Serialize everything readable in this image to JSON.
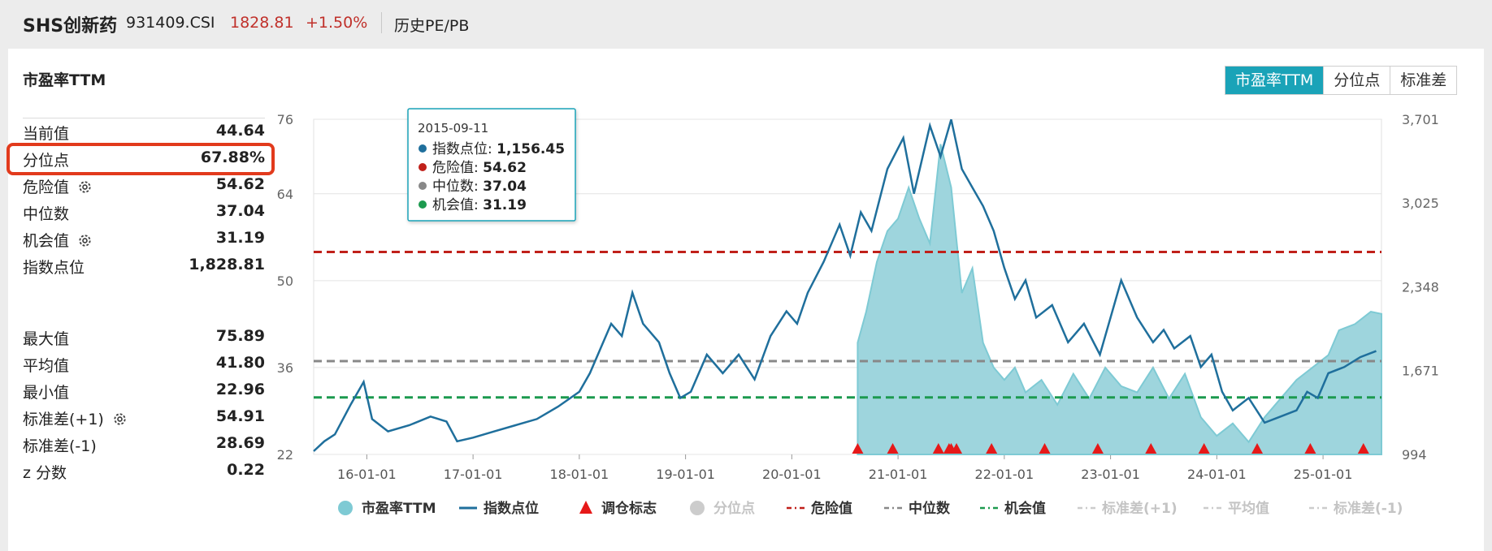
{
  "header": {
    "name": "SHS创新药",
    "code": "931409.CSI",
    "price": "1828.81",
    "change": "+1.50%",
    "history_label": "历史PE/PB"
  },
  "panel": {
    "title": "市盈率TTM",
    "stats": [
      {
        "label": "当前值",
        "value": "44.64",
        "gear": false
      },
      {
        "label": "分位点",
        "value": "67.88%",
        "gear": false
      },
      {
        "label": "危险值",
        "value": "54.62",
        "gear": true
      },
      {
        "label": "中位数",
        "value": "37.04",
        "gear": false
      },
      {
        "label": "机会值",
        "value": "31.19",
        "gear": true
      },
      {
        "label": "指数点位",
        "value": "1,828.81",
        "gear": false
      }
    ],
    "stats2": [
      {
        "label": "最大值",
        "value": "75.89",
        "gear": false
      },
      {
        "label": "平均值",
        "value": "41.80",
        "gear": false
      },
      {
        "label": "最小值",
        "value": "22.96",
        "gear": false
      },
      {
        "label": "标准差(+1)",
        "value": "54.91",
        "gear": true
      },
      {
        "label": "标准差(-1)",
        "value": "28.69",
        "gear": false
      },
      {
        "label": "z 分数",
        "value": "0.22",
        "gear": false
      }
    ]
  },
  "tabs": [
    {
      "label": "市盈率TTM",
      "active": true
    },
    {
      "label": "分位点",
      "active": false
    },
    {
      "label": "标准差",
      "active": false
    }
  ],
  "tooltip": {
    "date": "2015-09-11",
    "rows": [
      {
        "label": "指数点位",
        "value": "1,156.45",
        "color": "#1f6f9c"
      },
      {
        "label": "危险值",
        "value": "54.62",
        "color": "#c0201a"
      },
      {
        "label": "中位数",
        "value": "37.04",
        "color": "#888888"
      },
      {
        "label": "机会值",
        "value": "31.19",
        "color": "#1c9a4f"
      }
    ]
  },
  "chart_data": {
    "type": "line",
    "x_labels": [
      "16-01-01",
      "17-01-01",
      "18-01-01",
      "19-01-01",
      "20-01-01",
      "21-01-01",
      "22-01-01",
      "23-01-01",
      "24-01-01",
      "25-01-01"
    ],
    "y_left_ticks": [
      "76",
      "64",
      "50",
      "36",
      "22"
    ],
    "y_left_range": [
      22,
      76
    ],
    "y_right_ticks": [
      "3,701",
      "3,025",
      "2,348",
      "1,671",
      "994"
    ],
    "y_right_range": [
      994,
      3701
    ],
    "reference_lines": {
      "danger": 54.62,
      "median": 37.04,
      "opportunity": 31.19
    },
    "x_range": [
      2015.5,
      2025.55
    ],
    "index_series": [
      [
        2015.5,
        1020
      ],
      [
        2015.6,
        1100
      ],
      [
        2015.7,
        1156
      ],
      [
        2015.85,
        1400
      ],
      [
        2015.97,
        1580
      ],
      [
        2016.05,
        1280
      ],
      [
        2016.2,
        1180
      ],
      [
        2016.4,
        1230
      ],
      [
        2016.6,
        1300
      ],
      [
        2016.75,
        1260
      ],
      [
        2016.85,
        1100
      ],
      [
        2017.0,
        1130
      ],
      [
        2017.2,
        1180
      ],
      [
        2017.4,
        1230
      ],
      [
        2017.6,
        1280
      ],
      [
        2017.8,
        1380
      ],
      [
        2018.0,
        1500
      ],
      [
        2018.1,
        1650
      ],
      [
        2018.2,
        1850
      ],
      [
        2018.3,
        2050
      ],
      [
        2018.4,
        1950
      ],
      [
        2018.5,
        2300
      ],
      [
        2018.6,
        2050
      ],
      [
        2018.75,
        1900
      ],
      [
        2018.85,
        1650
      ],
      [
        2018.95,
        1450
      ],
      [
        2019.05,
        1500
      ],
      [
        2019.2,
        1800
      ],
      [
        2019.35,
        1650
      ],
      [
        2019.5,
        1800
      ],
      [
        2019.65,
        1600
      ],
      [
        2019.8,
        1950
      ],
      [
        2019.95,
        2150
      ],
      [
        2020.05,
        2050
      ],
      [
        2020.15,
        2300
      ],
      [
        2020.3,
        2550
      ],
      [
        2020.45,
        2850
      ],
      [
        2020.55,
        2600
      ],
      [
        2020.65,
        2950
      ],
      [
        2020.75,
        2800
      ],
      [
        2020.9,
        3300
      ],
      [
        2021.05,
        3550
      ],
      [
        2021.15,
        3100
      ],
      [
        2021.3,
        3650
      ],
      [
        2021.4,
        3400
      ],
      [
        2021.5,
        3700
      ],
      [
        2021.6,
        3300
      ],
      [
        2021.7,
        3150
      ],
      [
        2021.8,
        3000
      ],
      [
        2021.9,
        2800
      ],
      [
        2022.0,
        2500
      ],
      [
        2022.1,
        2250
      ],
      [
        2022.2,
        2400
      ],
      [
        2022.3,
        2100
      ],
      [
        2022.45,
        2200
      ],
      [
        2022.6,
        1900
      ],
      [
        2022.75,
        2050
      ],
      [
        2022.9,
        1800
      ],
      [
        2023.0,
        2100
      ],
      [
        2023.1,
        2400
      ],
      [
        2023.25,
        2100
      ],
      [
        2023.4,
        1900
      ],
      [
        2023.5,
        2000
      ],
      [
        2023.6,
        1850
      ],
      [
        2023.75,
        1950
      ],
      [
        2023.85,
        1700
      ],
      [
        2023.95,
        1800
      ],
      [
        2024.05,
        1500
      ],
      [
        2024.15,
        1350
      ],
      [
        2024.3,
        1450
      ],
      [
        2024.45,
        1250
      ],
      [
        2024.6,
        1300
      ],
      [
        2024.75,
        1350
      ],
      [
        2024.85,
        1500
      ],
      [
        2024.95,
        1450
      ],
      [
        2025.05,
        1650
      ],
      [
        2025.2,
        1700
      ],
      [
        2025.35,
        1780
      ],
      [
        2025.5,
        1829
      ]
    ],
    "pe_series": [
      [
        2020.62,
        40
      ],
      [
        2020.7,
        45
      ],
      [
        2020.8,
        53
      ],
      [
        2020.9,
        58
      ],
      [
        2021.0,
        60
      ],
      [
        2021.1,
        65
      ],
      [
        2021.2,
        60
      ],
      [
        2021.3,
        56
      ],
      [
        2021.4,
        72
      ],
      [
        2021.5,
        65
      ],
      [
        2021.6,
        48
      ],
      [
        2021.7,
        52
      ],
      [
        2021.8,
        40
      ],
      [
        2021.9,
        36
      ],
      [
        2022.0,
        34
      ],
      [
        2022.1,
        36
      ],
      [
        2022.2,
        32
      ],
      [
        2022.35,
        34
      ],
      [
        2022.5,
        30
      ],
      [
        2022.65,
        35
      ],
      [
        2022.8,
        31
      ],
      [
        2022.95,
        36
      ],
      [
        2023.1,
        33
      ],
      [
        2023.25,
        32
      ],
      [
        2023.4,
        36
      ],
      [
        2023.55,
        31
      ],
      [
        2023.7,
        35
      ],
      [
        2023.85,
        28
      ],
      [
        2024.0,
        25
      ],
      [
        2024.15,
        27
      ],
      [
        2024.3,
        24
      ],
      [
        2024.45,
        28
      ],
      [
        2024.6,
        31
      ],
      [
        2024.75,
        34
      ],
      [
        2024.9,
        36
      ],
      [
        2025.05,
        38
      ],
      [
        2025.15,
        42
      ],
      [
        2025.3,
        43
      ],
      [
        2025.45,
        45
      ],
      [
        2025.55,
        44.64
      ]
    ],
    "rebalance_marks_x": [
      2020.62,
      2020.95,
      2021.38,
      2021.48,
      2021.5,
      2021.55,
      2021.88,
      2022.38,
      2022.88,
      2023.38,
      2023.88,
      2024.38,
      2024.88,
      2025.38
    ],
    "legend": [
      {
        "label": "市盈率TTM",
        "kind": "dot",
        "color": "#7ecad4",
        "muted": false
      },
      {
        "label": "指数点位",
        "kind": "line",
        "color": "#1f6f9c",
        "muted": false
      },
      {
        "label": "调仓标志",
        "kind": "triangle",
        "color": "#e61919",
        "muted": false
      },
      {
        "label": "分位点",
        "kind": "dot",
        "color": "#cccccc",
        "muted": true
      },
      {
        "label": "危险值",
        "kind": "dash",
        "color": "#c0201a",
        "muted": false
      },
      {
        "label": "中位数",
        "kind": "dash",
        "color": "#888888",
        "muted": false
      },
      {
        "label": "机会值",
        "kind": "dash",
        "color": "#1c9a4f",
        "muted": false
      },
      {
        "label": "标准差(+1)",
        "kind": "dash",
        "color": "#cccccc",
        "muted": true
      },
      {
        "label": "平均值",
        "kind": "dash",
        "color": "#cccccc",
        "muted": true
      },
      {
        "label": "标准差(-1)",
        "kind": "dash",
        "color": "#cccccc",
        "muted": true
      }
    ]
  }
}
